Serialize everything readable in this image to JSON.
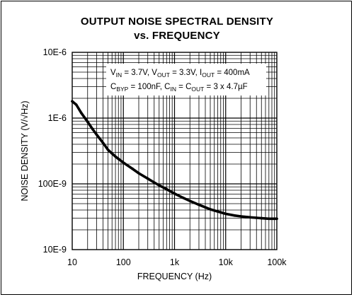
{
  "chart_data": {
    "type": "line",
    "title_line1": "OUTPUT NOISE SPECTRAL DENSITY",
    "title_line2": "vs. FREQUENCY",
    "xlabel": "FREQUENCY (Hz)",
    "ylabel": "NOISE DENSITY (V/√Hz)",
    "x_scale": "log",
    "y_scale": "log",
    "xlim": [
      10,
      100000
    ],
    "ylim": [
      1e-08,
      1e-05
    ],
    "x_ticks": [
      {
        "value": 10,
        "label": "10"
      },
      {
        "value": 100,
        "label": "100"
      },
      {
        "value": 1000,
        "label": "1k"
      },
      {
        "value": 10000,
        "label": "10k"
      },
      {
        "value": 100000,
        "label": "100k"
      }
    ],
    "y_ticks": [
      {
        "value": 1e-05,
        "label": "10E-6"
      },
      {
        "value": 1e-06,
        "label": "1E-6"
      },
      {
        "value": 1e-07,
        "label": "100E-9"
      },
      {
        "value": 1e-08,
        "label": "10E-9"
      }
    ],
    "grid": true,
    "annotation": {
      "line1": [
        {
          "t": "V"
        },
        {
          "t": "IN",
          "sub": true
        },
        {
          "t": " = 3.7V, V"
        },
        {
          "t": "OUT",
          "sub": true
        },
        {
          "t": " = 3.3V, I"
        },
        {
          "t": "OUT",
          "sub": true
        },
        {
          "t": " = 400mA"
        }
      ],
      "line2": [
        {
          "t": "C"
        },
        {
          "t": "BYP",
          "sub": true
        },
        {
          "t": " = 100nF, C"
        },
        {
          "t": "IN",
          "sub": true
        },
        {
          "t": " = C"
        },
        {
          "t": "OUT",
          "sub": true
        },
        {
          "t": " = 3 x 4.7µF"
        }
      ]
    },
    "series": [
      {
        "x": [
          10,
          12,
          15,
          20,
          25,
          30,
          40,
          50,
          60,
          70,
          80,
          100,
          150,
          200,
          300,
          400,
          500,
          700,
          1000,
          1500,
          2000,
          3000,
          4000,
          5000,
          7000,
          10000,
          15000,
          20000,
          30000,
          40000,
          50000,
          70000,
          100000
        ],
        "y": [
          1.8e-06,
          1.6e-06,
          1.2e-06,
          8.8e-07,
          6.8e-07,
          5.6e-07,
          4.2e-07,
          3.3e-07,
          2.9e-07,
          2.6e-07,
          2.4e-07,
          2.1e-07,
          1.7e-07,
          1.45e-07,
          1.2e-07,
          1.05e-07,
          9.5e-08,
          8.3e-08,
          7.1e-08,
          6.1e-08,
          5.5e-08,
          4.8e-08,
          4.4e-08,
          4.1e-08,
          3.8e-08,
          3.5e-08,
          3.3e-08,
          3.2e-08,
          3.1e-08,
          3.05e-08,
          3e-08,
          2.95e-08,
          2.95e-08
        ]
      }
    ]
  }
}
